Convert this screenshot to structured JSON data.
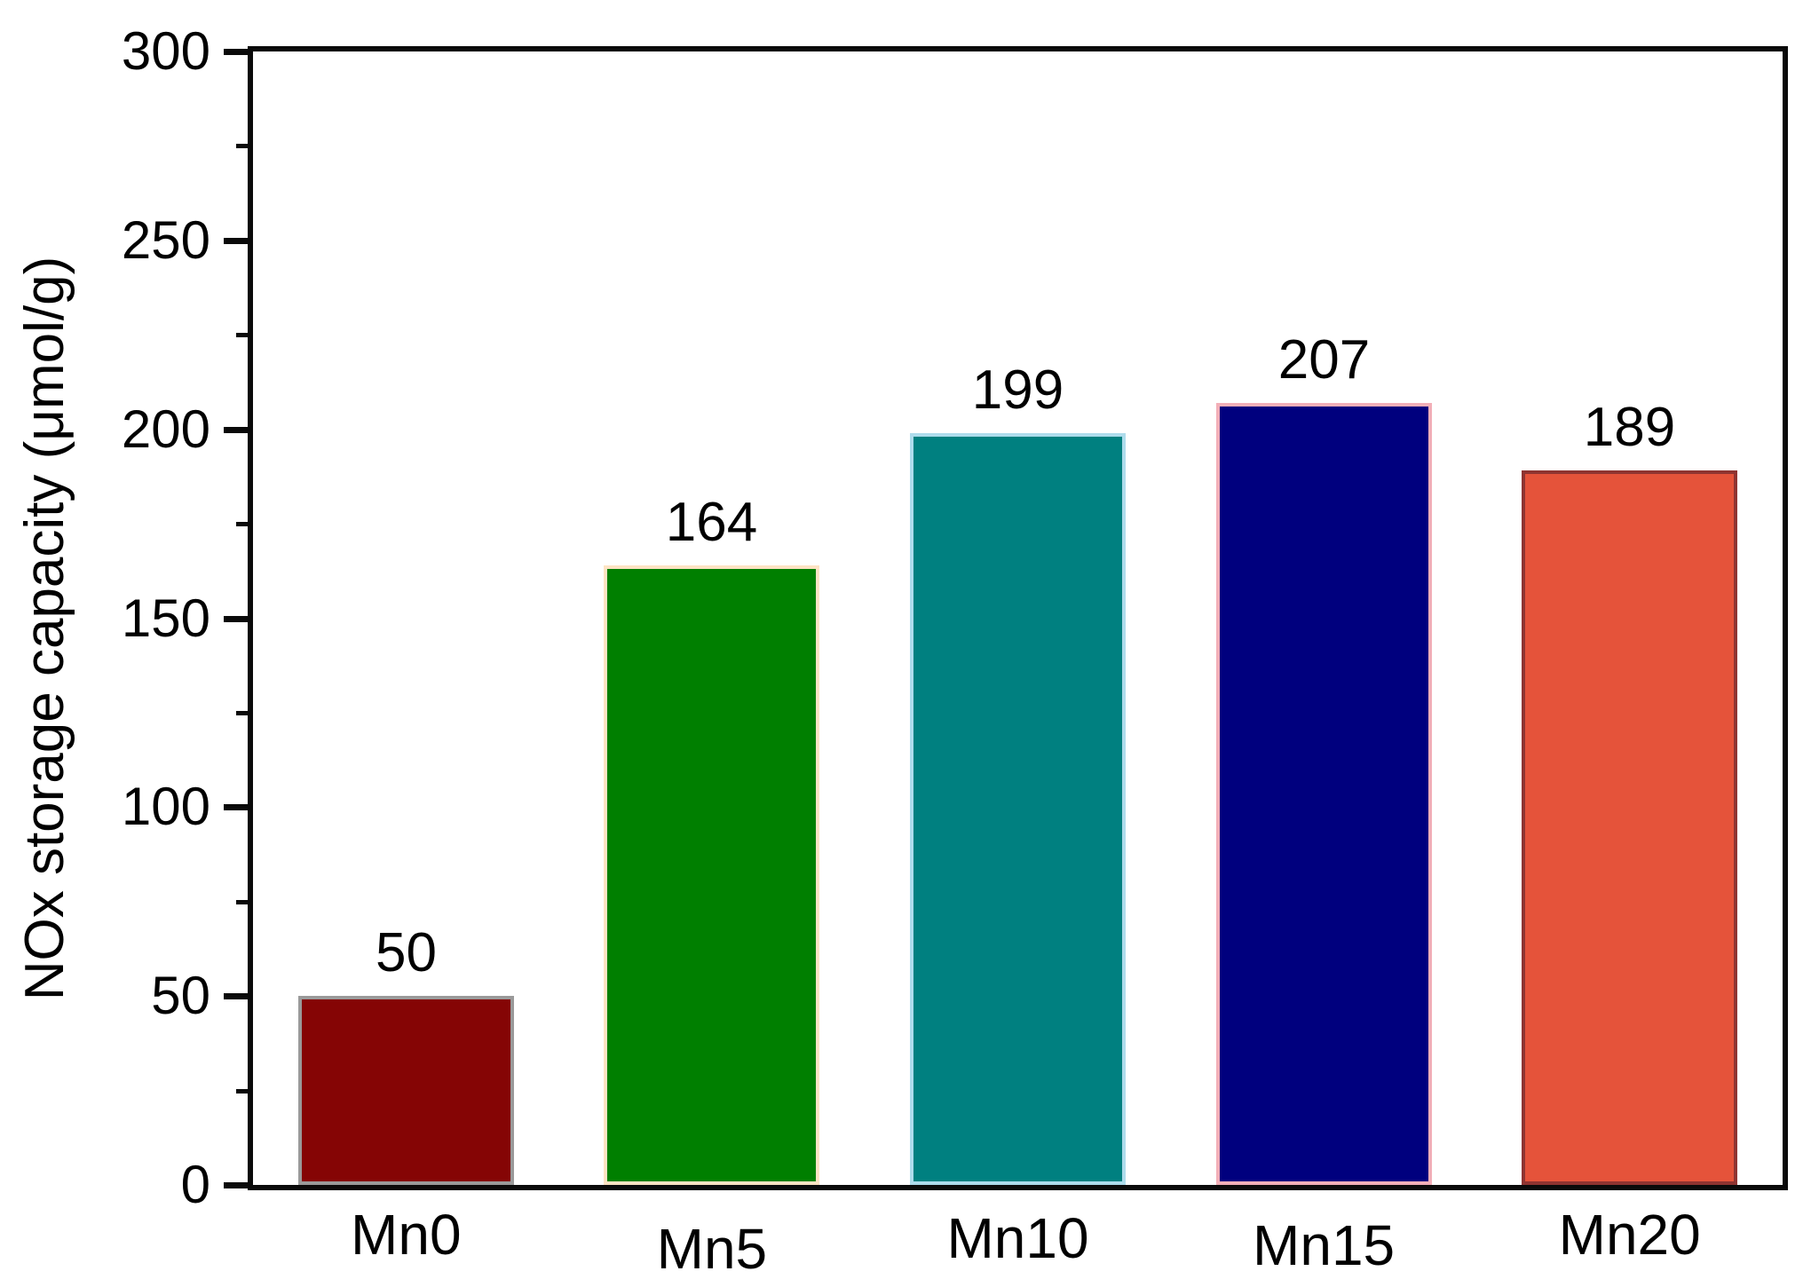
{
  "figure": {
    "background_color": "#ffffff",
    "frame_color": "#0a0a0a"
  },
  "chart_data": {
    "type": "bar",
    "title": "",
    "categories": [
      "Mn0",
      "Mn5",
      "Mn10",
      "Mn15",
      "Mn20"
    ],
    "values": [
      50,
      164,
      199,
      207,
      189
    ],
    "data_labels": [
      "50",
      "164",
      "199",
      "207",
      "189"
    ],
    "bar_fill_colors": [
      "#850505",
      "#007f00",
      "#008080",
      "#00007e",
      "#e5533a"
    ],
    "bar_edge_colors": [
      "#9a9a9a",
      "#fde3c3",
      "#aedcec",
      "#f3afb8",
      "#8f3431"
    ],
    "xlabel": "",
    "ylabel": "NOx storage capacity (μmol/g)",
    "ylim": [
      0,
      300
    ],
    "ytick_values": [
      0,
      50,
      100,
      150,
      200,
      250,
      300
    ],
    "ytick_labels": [
      "0",
      "50",
      "100",
      "150",
      "200",
      "250",
      "300"
    ],
    "ytick_minor_values": [
      25,
      75,
      125,
      175,
      225,
      275
    ],
    "grid": false,
    "legend": false
  }
}
